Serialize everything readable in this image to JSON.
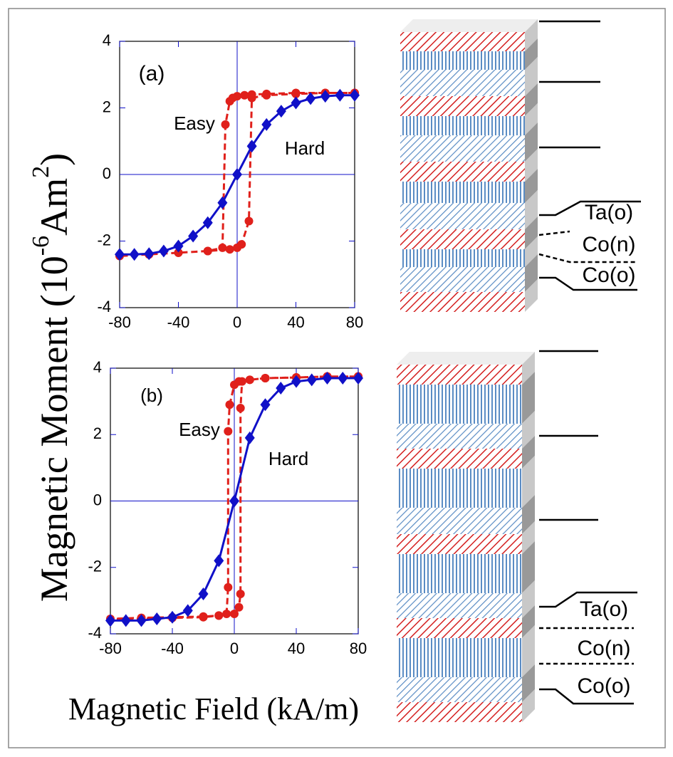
{
  "figure": {
    "ylabel": [
      "Magnetic Moment (10",
      "-6",
      "Am",
      "2",
      ")"
    ],
    "xlabel": "Magnetic Field (kA/m)"
  },
  "chart_data": [
    {
      "type": "line",
      "panel_label": "(a)",
      "xlim": [
        -80,
        80
      ],
      "ylim": [
        -4,
        4
      ],
      "xticks": [
        -80,
        -40,
        0,
        40,
        80
      ],
      "yticks": [
        -4,
        -2,
        0,
        2,
        4
      ],
      "series": [
        {
          "name": "Easy",
          "color": "#e0201b",
          "x": [
            80,
            60,
            40,
            20,
            10,
            5,
            0,
            -3,
            -5,
            -8,
            -10,
            -20,
            -40,
            -60,
            -80,
            -60,
            -40,
            -20,
            -5,
            0,
            3,
            8,
            10,
            20,
            40,
            60,
            80
          ],
          "values": [
            2.45,
            2.45,
            2.45,
            2.42,
            2.4,
            2.38,
            2.35,
            2.3,
            2.2,
            1.5,
            -2.2,
            -2.3,
            -2.35,
            -2.4,
            -2.45,
            -2.4,
            -2.35,
            -2.3,
            -2.25,
            -2.2,
            -2.1,
            -1.4,
            2.3,
            2.38,
            2.42,
            2.45,
            2.45
          ]
        },
        {
          "name": "Hard",
          "color": "#1010c8",
          "x": [
            -80,
            -70,
            -60,
            -50,
            -40,
            -30,
            -20,
            -10,
            0,
            10,
            20,
            30,
            40,
            50,
            60,
            70,
            80
          ],
          "values": [
            -2.4,
            -2.4,
            -2.38,
            -2.3,
            -2.15,
            -1.85,
            -1.45,
            -0.85,
            0,
            0.85,
            1.5,
            1.9,
            2.15,
            2.28,
            2.35,
            2.38,
            2.38
          ]
        }
      ]
    },
    {
      "type": "line",
      "panel_label": "(b)",
      "xlim": [
        -80,
        80
      ],
      "ylim": [
        -4,
        4
      ],
      "xticks": [
        -80,
        -40,
        0,
        40,
        80
      ],
      "yticks": [
        -4,
        -2,
        0,
        2,
        4
      ],
      "series": [
        {
          "name": "Easy",
          "color": "#e0201b",
          "x": [
            80,
            60,
            40,
            20,
            10,
            3,
            0,
            -3,
            -4,
            -4,
            -5,
            -10,
            -20,
            -40,
            -60,
            -80,
            -60,
            -40,
            -20,
            -10,
            0,
            3,
            4,
            4,
            5,
            10,
            20,
            40,
            60,
            80
          ],
          "values": [
            3.75,
            3.75,
            3.72,
            3.7,
            3.65,
            3.6,
            3.5,
            2.9,
            2.1,
            -2.6,
            -3.4,
            -3.45,
            -3.5,
            -3.52,
            -3.55,
            -3.55,
            -3.52,
            -3.5,
            -3.48,
            -3.45,
            -3.4,
            -3.2,
            -2.8,
            2.8,
            3.6,
            3.65,
            3.7,
            3.72,
            3.75,
            3.75
          ]
        },
        {
          "name": "Hard",
          "color": "#1010c8",
          "x": [
            -80,
            -70,
            -60,
            -50,
            -40,
            -30,
            -20,
            -10,
            0,
            10,
            20,
            30,
            40,
            50,
            60,
            70,
            80
          ],
          "values": [
            -3.6,
            -3.6,
            -3.6,
            -3.55,
            -3.5,
            -3.3,
            -2.8,
            -1.8,
            0,
            1.9,
            2.9,
            3.4,
            3.6,
            3.65,
            3.7,
            3.7,
            3.7
          ]
        }
      ]
    }
  ],
  "diagrams": [
    {
      "labels": [
        "Ta(o)",
        "Co(n)",
        "Co(o)"
      ]
    },
    {
      "labels": [
        "Ta(o)",
        "Co(n)",
        "Co(o)"
      ]
    }
  ]
}
